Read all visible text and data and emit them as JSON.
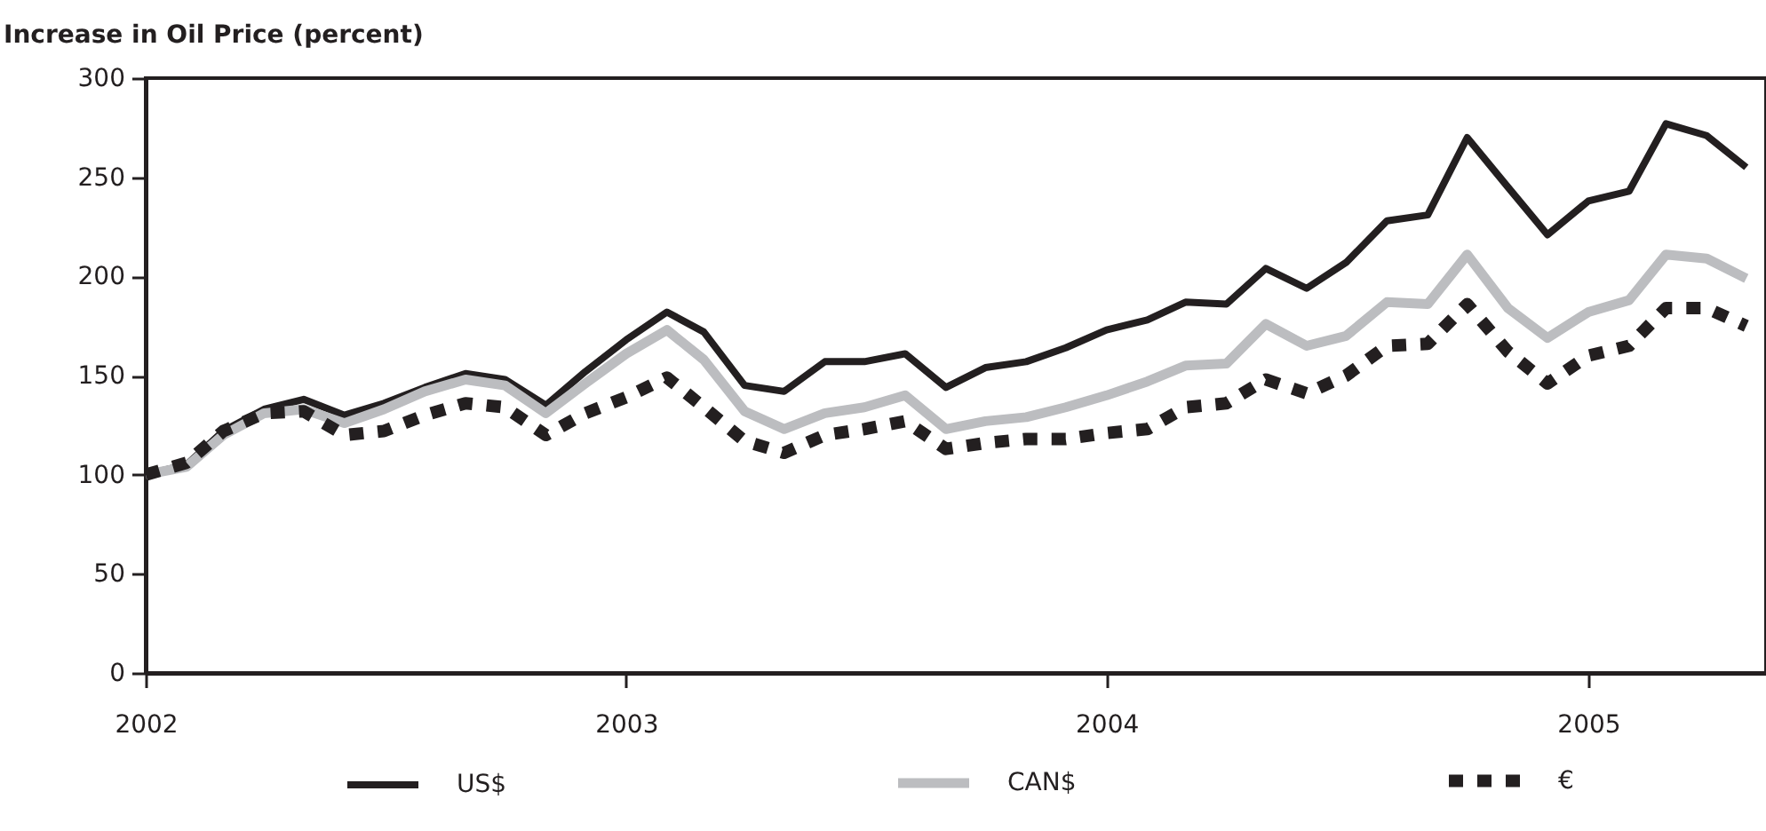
{
  "chart_data": {
    "type": "line",
    "title": "Increase in Oil Price (percent)",
    "x": [
      "2002-01",
      "2002-02",
      "2002-03",
      "2002-04",
      "2002-05",
      "2002-06",
      "2002-07",
      "2002-08",
      "2002-09",
      "2002-10",
      "2002-11",
      "2002-12",
      "2003-01",
      "2003-02",
      "2003-03",
      "2003-04",
      "2003-05",
      "2003-06",
      "2003-07",
      "2003-08",
      "2003-09",
      "2003-10",
      "2003-11",
      "2003-12",
      "2004-01",
      "2004-02",
      "2004-03",
      "2004-04",
      "2004-05",
      "2004-06",
      "2004-07",
      "2004-08",
      "2004-09",
      "2004-10",
      "2004-11",
      "2004-12",
      "2005-01",
      "2005-02",
      "2005-03",
      "2005-04",
      "2005-05"
    ],
    "series": [
      {
        "name": "US$",
        "color": "#231f20",
        "line_style": "solid",
        "values": [
          100,
          105,
          122,
          133,
          138,
          130,
          136,
          144,
          151,
          148,
          135,
          152,
          168,
          182,
          172,
          145,
          142,
          157,
          157,
          161,
          144,
          154,
          157,
          164,
          173,
          178,
          187,
          186,
          204,
          194,
          207,
          228,
          231,
          270,
          245,
          221,
          238,
          243,
          277,
          271,
          255
        ]
      },
      {
        "name": "CAN$",
        "color": "#bcbdc0",
        "line_style": "solid",
        "values": [
          100,
          104,
          120,
          131,
          133,
          126,
          133,
          142,
          148,
          145,
          131,
          146,
          161,
          173,
          158,
          132,
          123,
          131,
          134,
          140,
          123,
          127,
          129,
          134,
          140,
          147,
          155,
          156,
          176,
          165,
          170,
          187,
          186,
          211,
          184,
          169,
          182,
          188,
          211,
          209,
          199
        ]
      },
      {
        "name": "€",
        "color": "#231f20",
        "line_style": "dashed",
        "values": [
          100,
          106,
          122,
          131,
          132,
          120,
          122,
          130,
          136,
          134,
          120,
          131,
          139,
          149,
          134,
          117,
          111,
          120,
          123,
          127,
          113,
          116,
          118,
          118,
          121,
          123,
          134,
          136,
          148,
          141,
          150,
          165,
          166,
          186,
          162,
          146,
          160,
          165,
          184,
          184,
          175
        ]
      }
    ],
    "xlim": [
      "2002-01",
      "2005-05-16"
    ],
    "xticks": [
      "2002",
      "2003",
      "2004",
      "2005"
    ],
    "ylim": [
      0,
      300
    ],
    "yticks": [
      0,
      50,
      100,
      150,
      200,
      250,
      300
    ],
    "grid": false,
    "legend": "bottom"
  }
}
